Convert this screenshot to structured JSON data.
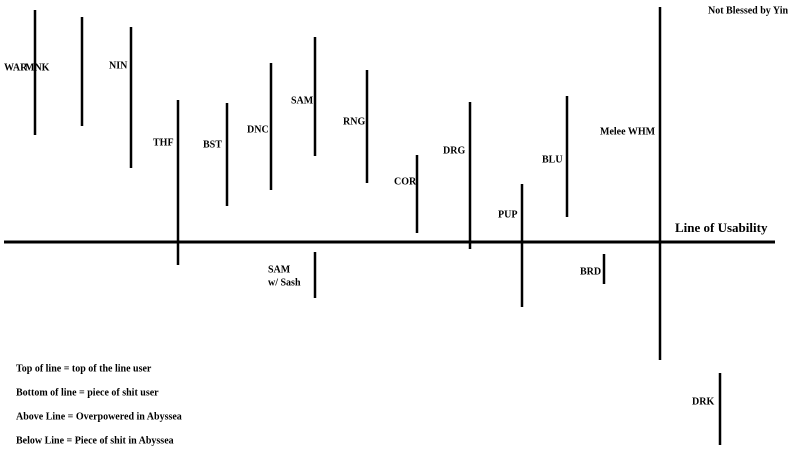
{
  "corner_note": "Not Blessed by Yin",
  "axis_label": "Line of Usability",
  "jobs": [
    "WAR",
    "MNK",
    "NIN",
    "THF",
    "BST",
    "DNC",
    "SAM",
    "RNG",
    "COR",
    "DRG",
    "PUP",
    "BLU",
    "Melee WHM",
    "BRD",
    "DRK"
  ],
  "sam_sash": [
    "SAM",
    "w/ Sash"
  ],
  "legend": [
    "Top of line  = top of the line user",
    "Bottom of line = piece of shit user",
    "Above Line = Overpowered in Abyssea",
    "Below Line = Piece of shit in Abyssea"
  ]
}
